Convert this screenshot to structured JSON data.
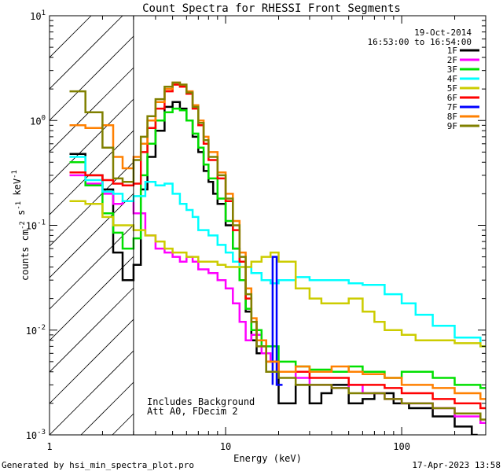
{
  "chart_data": {
    "type": "line",
    "title": "Count Spectra for RHESSI Front Segments",
    "xlabel": "Energy (keV)",
    "ylabel": "counts cm-2 s-1 keV-1",
    "xscale": "log",
    "yscale": "log",
    "xlim": [
      1,
      300
    ],
    "ylim": [
      0.001,
      10
    ],
    "x_ticks": [
      {
        "value": 1,
        "label": "1"
      },
      {
        "value": 10,
        "label": "10"
      },
      {
        "value": 100,
        "label": "100"
      }
    ],
    "y_ticks": [
      {
        "value": 0.001,
        "base": "10",
        "exp": "-3"
      },
      {
        "value": 0.01,
        "base": "10",
        "exp": "-2"
      },
      {
        "value": 0.1,
        "base": "10",
        "exp": "-1"
      },
      {
        "value": 1,
        "base": "10",
        "exp": "0"
      },
      {
        "value": 10,
        "base": "10",
        "exp": "1"
      }
    ],
    "hatched_region_kev": [
      1,
      3
    ],
    "date": "19-Oct-2014",
    "time_range": "16:53:00 to 16:54:00",
    "legend_position": "top-right",
    "annotations": [
      "Includes Background",
      "Att A0, FDecim 2"
    ],
    "series": [
      {
        "name": "1F",
        "color": "#000000",
        "points": [
          [
            1.3,
            0.48
          ],
          [
            1.6,
            0.3
          ],
          [
            2.0,
            0.22
          ],
          [
            2.3,
            0.055
          ],
          [
            2.6,
            0.03
          ],
          [
            3.0,
            0.042
          ],
          [
            3.3,
            0.22
          ],
          [
            3.6,
            0.45
          ],
          [
            4.0,
            0.8
          ],
          [
            4.5,
            1.35
          ],
          [
            5.0,
            1.5
          ],
          [
            5.5,
            1.3
          ],
          [
            6.0,
            1.0
          ],
          [
            6.5,
            0.7
          ],
          [
            7.0,
            0.5
          ],
          [
            7.5,
            0.33
          ],
          [
            8.0,
            0.26
          ],
          [
            8.5,
            0.2
          ],
          [
            9.0,
            0.16
          ],
          [
            10.0,
            0.1
          ],
          [
            11.0,
            0.06
          ],
          [
            12.0,
            0.03
          ],
          [
            13.0,
            0.015
          ],
          [
            14.0,
            0.008
          ],
          [
            15.0,
            0.006
          ],
          [
            17.0,
            0.004
          ],
          [
            20.0,
            0.002
          ],
          [
            25.0,
            0.003
          ],
          [
            30.0,
            0.002
          ],
          [
            35.0,
            0.0025
          ],
          [
            40.0,
            0.003
          ],
          [
            50.0,
            0.002
          ],
          [
            60.0,
            0.0022
          ],
          [
            70.0,
            0.0025
          ],
          [
            90.0,
            0.002
          ],
          [
            110.0,
            0.0018
          ],
          [
            150.0,
            0.0015
          ],
          [
            200.0,
            0.0012
          ],
          [
            250.0,
            0.001
          ]
        ]
      },
      {
        "name": "2F",
        "color": "#ff00ff",
        "points": [
          [
            1.3,
            0.3
          ],
          [
            1.6,
            0.25
          ],
          [
            2.0,
            0.2
          ],
          [
            2.3,
            0.16
          ],
          [
            2.6,
            0.17
          ],
          [
            3.0,
            0.13
          ],
          [
            3.5,
            0.08
          ],
          [
            4.0,
            0.06
          ],
          [
            4.5,
            0.055
          ],
          [
            5.0,
            0.05
          ],
          [
            5.5,
            0.045
          ],
          [
            6.0,
            0.05
          ],
          [
            6.5,
            0.045
          ],
          [
            7.0,
            0.038
          ],
          [
            8.0,
            0.035
          ],
          [
            9.0,
            0.03
          ],
          [
            10.0,
            0.025
          ],
          [
            11.0,
            0.018
          ],
          [
            12.0,
            0.012
          ],
          [
            13.0,
            0.008
          ],
          [
            14.0,
            0.009
          ],
          [
            16.0,
            0.006
          ],
          [
            18.0,
            0.005
          ],
          [
            20.0,
            0.004
          ],
          [
            25.0,
            0.0035
          ],
          [
            30.0,
            0.003
          ],
          [
            40.0,
            0.0028
          ],
          [
            50.0,
            0.003
          ],
          [
            60.0,
            0.0025
          ],
          [
            80.0,
            0.0022
          ],
          [
            100.0,
            0.002
          ],
          [
            150.0,
            0.0018
          ],
          [
            200.0,
            0.0015
          ],
          [
            280.0,
            0.0013
          ]
        ]
      },
      {
        "name": "3F",
        "color": "#00e000",
        "points": [
          [
            1.3,
            0.4
          ],
          [
            1.6,
            0.24
          ],
          [
            2.0,
            0.13
          ],
          [
            2.3,
            0.085
          ],
          [
            2.6,
            0.06
          ],
          [
            3.0,
            0.075
          ],
          [
            3.3,
            0.3
          ],
          [
            3.6,
            0.6
          ],
          [
            4.0,
            1.0
          ],
          [
            4.5,
            1.2
          ],
          [
            5.0,
            1.3
          ],
          [
            5.5,
            1.25
          ],
          [
            6.0,
            1.0
          ],
          [
            6.5,
            0.75
          ],
          [
            7.0,
            0.55
          ],
          [
            7.5,
            0.38
          ],
          [
            8.0,
            0.28
          ],
          [
            9.0,
            0.18
          ],
          [
            10.0,
            0.11
          ],
          [
            11.0,
            0.06
          ],
          [
            12.0,
            0.03
          ],
          [
            13.0,
            0.016
          ],
          [
            14.0,
            0.01
          ],
          [
            16.0,
            0.007
          ],
          [
            20.0,
            0.005
          ],
          [
            25.0,
            0.0045
          ],
          [
            30.0,
            0.0042
          ],
          [
            40.0,
            0.004
          ],
          [
            50.0,
            0.0045
          ],
          [
            60.0,
            0.004
          ],
          [
            80.0,
            0.0035
          ],
          [
            100.0,
            0.004
          ],
          [
            150.0,
            0.0035
          ],
          [
            200.0,
            0.003
          ],
          [
            280.0,
            0.0028
          ]
        ]
      },
      {
        "name": "4F",
        "color": "#00ffff",
        "points": [
          [
            1.3,
            0.45
          ],
          [
            1.6,
            0.27
          ],
          [
            2.0,
            0.21
          ],
          [
            2.3,
            0.2
          ],
          [
            2.6,
            0.17
          ],
          [
            3.0,
            0.19
          ],
          [
            3.5,
            0.26
          ],
          [
            4.0,
            0.24
          ],
          [
            4.5,
            0.25
          ],
          [
            5.0,
            0.2
          ],
          [
            5.5,
            0.16
          ],
          [
            6.0,
            0.14
          ],
          [
            6.5,
            0.12
          ],
          [
            7.0,
            0.09
          ],
          [
            8.0,
            0.08
          ],
          [
            9.0,
            0.065
          ],
          [
            10.0,
            0.055
          ],
          [
            11.0,
            0.045
          ],
          [
            12.0,
            0.04
          ],
          [
            14.0,
            0.035
          ],
          [
            16.0,
            0.03
          ],
          [
            18.0,
            0.028
          ],
          [
            20.0,
            0.03
          ],
          [
            25.0,
            0.032
          ],
          [
            30.0,
            0.03
          ],
          [
            40.0,
            0.03
          ],
          [
            50.0,
            0.028
          ],
          [
            60.0,
            0.027
          ],
          [
            80.0,
            0.022
          ],
          [
            100.0,
            0.018
          ],
          [
            120.0,
            0.014
          ],
          [
            150.0,
            0.011
          ],
          [
            200.0,
            0.0085
          ],
          [
            280.0,
            0.007
          ]
        ]
      },
      {
        "name": "5F",
        "color": "#cccc00",
        "points": [
          [
            1.3,
            0.17
          ],
          [
            1.6,
            0.16
          ],
          [
            2.0,
            0.12
          ],
          [
            2.3,
            0.1
          ],
          [
            2.6,
            0.1
          ],
          [
            3.0,
            0.09
          ],
          [
            3.5,
            0.08
          ],
          [
            4.0,
            0.07
          ],
          [
            4.5,
            0.06
          ],
          [
            5.0,
            0.055
          ],
          [
            5.5,
            0.055
          ],
          [
            6.0,
            0.05
          ],
          [
            7.0,
            0.045
          ],
          [
            8.0,
            0.045
          ],
          [
            9.0,
            0.042
          ],
          [
            10.0,
            0.04
          ],
          [
            12.0,
            0.04
          ],
          [
            14.0,
            0.045
          ],
          [
            16.0,
            0.05
          ],
          [
            18.0,
            0.055
          ],
          [
            20.0,
            0.045
          ],
          [
            25.0,
            0.025
          ],
          [
            30.0,
            0.02
          ],
          [
            35.0,
            0.018
          ],
          [
            40.0,
            0.018
          ],
          [
            50.0,
            0.02
          ],
          [
            60.0,
            0.015
          ],
          [
            70.0,
            0.012
          ],
          [
            80.0,
            0.01
          ],
          [
            100.0,
            0.009
          ],
          [
            120.0,
            0.008
          ],
          [
            150.0,
            0.008
          ],
          [
            200.0,
            0.0075
          ],
          [
            280.0,
            0.007
          ]
        ]
      },
      {
        "name": "6F",
        "color": "#ff0000",
        "points": [
          [
            1.3,
            0.32
          ],
          [
            1.6,
            0.3
          ],
          [
            2.0,
            0.27
          ],
          [
            2.3,
            0.25
          ],
          [
            2.6,
            0.24
          ],
          [
            3.0,
            0.25
          ],
          [
            3.3,
            0.5
          ],
          [
            3.6,
            0.85
          ],
          [
            4.0,
            1.3
          ],
          [
            4.5,
            1.9
          ],
          [
            5.0,
            2.2
          ],
          [
            5.5,
            2.1
          ],
          [
            6.0,
            1.8
          ],
          [
            6.5,
            1.3
          ],
          [
            7.0,
            0.9
          ],
          [
            7.5,
            0.6
          ],
          [
            8.0,
            0.42
          ],
          [
            9.0,
            0.28
          ],
          [
            10.0,
            0.17
          ],
          [
            11.0,
            0.09
          ],
          [
            12.0,
            0.045
          ],
          [
            13.0,
            0.02
          ],
          [
            14.0,
            0.012
          ],
          [
            15.0,
            0.008
          ],
          [
            17.0,
            0.005
          ],
          [
            20.0,
            0.004
          ],
          [
            25.0,
            0.004
          ],
          [
            30.0,
            0.0035
          ],
          [
            40.0,
            0.0035
          ],
          [
            50.0,
            0.003
          ],
          [
            60.0,
            0.003
          ],
          [
            80.0,
            0.0028
          ],
          [
            100.0,
            0.0025
          ],
          [
            150.0,
            0.0022
          ],
          [
            200.0,
            0.002
          ],
          [
            280.0,
            0.0018
          ]
        ]
      },
      {
        "name": "7F",
        "color": "#0000ff",
        "points": [
          [
            18.5,
            0.003
          ],
          [
            18.5,
            0.05
          ],
          [
            19.5,
            0.05
          ],
          [
            19.5,
            0.003
          ]
        ]
      },
      {
        "name": "8F",
        "color": "#ff8000",
        "points": [
          [
            1.3,
            0.9
          ],
          [
            1.6,
            0.85
          ],
          [
            2.0,
            0.9
          ],
          [
            2.3,
            0.45
          ],
          [
            2.6,
            0.35
          ],
          [
            3.0,
            0.45
          ],
          [
            3.3,
            0.6
          ],
          [
            3.6,
            1.0
          ],
          [
            4.0,
            1.5
          ],
          [
            4.5,
            2.0
          ],
          [
            5.0,
            2.3
          ],
          [
            5.5,
            2.2
          ],
          [
            6.0,
            1.9
          ],
          [
            6.5,
            1.4
          ],
          [
            7.0,
            1.0
          ],
          [
            7.5,
            0.7
          ],
          [
            8.0,
            0.5
          ],
          [
            9.0,
            0.32
          ],
          [
            10.0,
            0.2
          ],
          [
            11.0,
            0.11
          ],
          [
            12.0,
            0.055
          ],
          [
            13.0,
            0.025
          ],
          [
            14.0,
            0.013
          ],
          [
            15.0,
            0.008
          ],
          [
            17.0,
            0.005
          ],
          [
            20.0,
            0.004
          ],
          [
            25.0,
            0.0045
          ],
          [
            30.0,
            0.004
          ],
          [
            40.0,
            0.0045
          ],
          [
            50.0,
            0.004
          ],
          [
            60.0,
            0.0038
          ],
          [
            80.0,
            0.0035
          ],
          [
            100.0,
            0.003
          ],
          [
            150.0,
            0.0028
          ],
          [
            200.0,
            0.0025
          ],
          [
            280.0,
            0.0022
          ]
        ]
      },
      {
        "name": "9F",
        "color": "#808000",
        "points": [
          [
            1.3,
            1.9
          ],
          [
            1.6,
            1.2
          ],
          [
            2.0,
            0.55
          ],
          [
            2.3,
            0.28
          ],
          [
            2.6,
            0.26
          ],
          [
            3.0,
            0.42
          ],
          [
            3.3,
            0.7
          ],
          [
            3.6,
            1.1
          ],
          [
            4.0,
            1.6
          ],
          [
            4.5,
            2.1
          ],
          [
            5.0,
            2.3
          ],
          [
            5.5,
            2.2
          ],
          [
            6.0,
            1.85
          ],
          [
            6.5,
            1.35
          ],
          [
            7.0,
            0.95
          ],
          [
            7.5,
            0.65
          ],
          [
            8.0,
            0.45
          ],
          [
            9.0,
            0.3
          ],
          [
            10.0,
            0.18
          ],
          [
            11.0,
            0.1
          ],
          [
            12.0,
            0.05
          ],
          [
            13.0,
            0.022
          ],
          [
            14.0,
            0.012
          ],
          [
            15.0,
            0.007
          ],
          [
            17.0,
            0.004
          ],
          [
            20.0,
            0.0035
          ],
          [
            25.0,
            0.003
          ],
          [
            30.0,
            0.003
          ],
          [
            40.0,
            0.0028
          ],
          [
            50.0,
            0.0025
          ],
          [
            60.0,
            0.0025
          ],
          [
            80.0,
            0.0022
          ],
          [
            100.0,
            0.002
          ],
          [
            150.0,
            0.0018
          ],
          [
            200.0,
            0.0016
          ],
          [
            280.0,
            0.0014
          ]
        ]
      }
    ]
  },
  "footer": {
    "generated_by": "Generated by hsi_min_spectra_plot.pro",
    "timestamp": "17-Apr-2023 13:58"
  }
}
